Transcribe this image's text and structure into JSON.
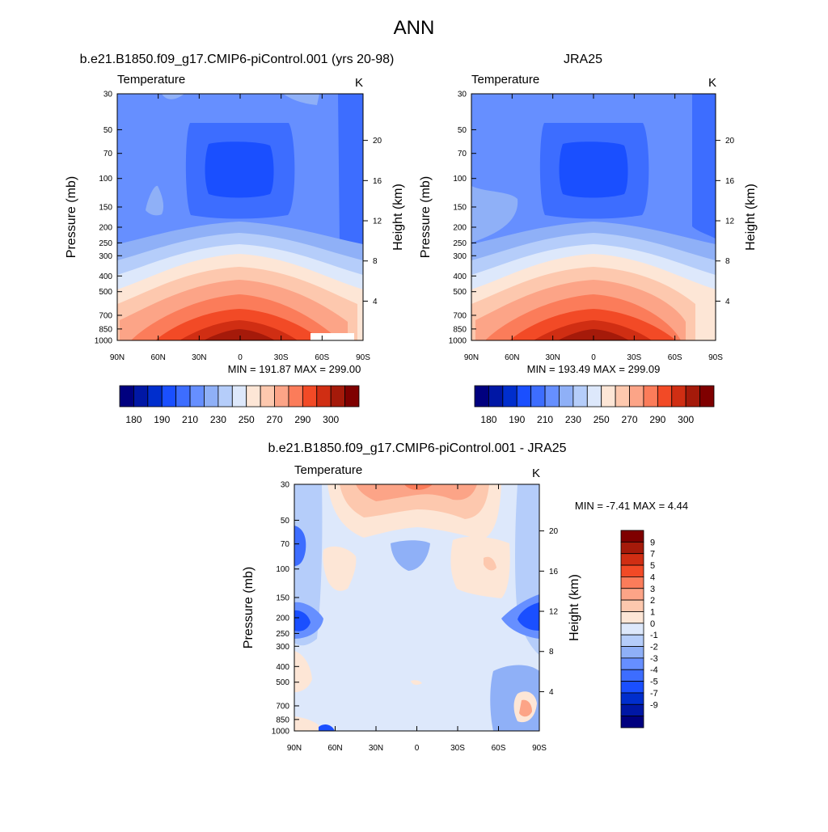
{
  "page_title": "ANN",
  "chart_data": [
    {
      "type": "heatmap",
      "id": "model",
      "title": "b.e21.B1850.f09_g17.CMIP6-piControl.001 (yrs 20-98)",
      "left_label": "Temperature",
      "units": "K",
      "ylabel": "Pressure (mb)",
      "ylabel_right": "Height (km)",
      "x_ticks": [
        "90N",
        "60N",
        "30N",
        "0",
        "30S",
        "60S",
        "90S"
      ],
      "y_ticks": [
        "30",
        "50",
        "70",
        "100",
        "150",
        "200",
        "250",
        "300",
        "400",
        "500",
        "700",
        "850",
        "1000"
      ],
      "y_right_ticks": [
        "20",
        "16",
        "12",
        "8",
        "4"
      ],
      "min_max_text": "MIN = 191.87  MAX = 299.00",
      "levels": [
        180,
        185,
        190,
        200,
        210,
        220,
        230,
        240,
        250,
        260,
        270,
        280,
        290,
        295,
        300
      ],
      "colorbar_labels": [
        "180",
        "190",
        "210",
        "230",
        "250",
        "270",
        "290",
        "300"
      ],
      "colors": [
        "#00007f",
        "#0017a5",
        "#002ecd",
        "#1a4fff",
        "#3d6dff",
        "#668fff",
        "#8fb0f7",
        "#b5cdfa",
        "#dde8fb",
        "#fde6d6",
        "#fdc8ae",
        "#fca487",
        "#fb7c5a",
        "#f24a26",
        "#d02e13",
        "#a51a0a",
        "#7f0000"
      ]
    },
    {
      "type": "heatmap",
      "id": "obs",
      "title": "JRA25",
      "left_label": "Temperature",
      "units": "K",
      "ylabel": "Pressure (mb)",
      "ylabel_right": "Height (km)",
      "x_ticks": [
        "90N",
        "60N",
        "30N",
        "0",
        "30S",
        "60S",
        "90S"
      ],
      "y_ticks": [
        "30",
        "50",
        "70",
        "100",
        "150",
        "200",
        "250",
        "300",
        "400",
        "500",
        "700",
        "850",
        "1000"
      ],
      "y_right_ticks": [
        "20",
        "16",
        "12",
        "8",
        "4"
      ],
      "min_max_text": "MIN = 193.49  MAX = 299.09",
      "levels": [
        180,
        185,
        190,
        200,
        210,
        220,
        230,
        240,
        250,
        260,
        270,
        280,
        290,
        295,
        300
      ],
      "colorbar_labels": [
        "180",
        "190",
        "210",
        "230",
        "250",
        "270",
        "290",
        "300"
      ],
      "colors": [
        "#00007f",
        "#0017a5",
        "#002ecd",
        "#1a4fff",
        "#3d6dff",
        "#668fff",
        "#8fb0f7",
        "#b5cdfa",
        "#dde8fb",
        "#fde6d6",
        "#fdc8ae",
        "#fca487",
        "#fb7c5a",
        "#f24a26",
        "#d02e13",
        "#a51a0a",
        "#7f0000"
      ]
    },
    {
      "type": "heatmap",
      "id": "diff",
      "title": "b.e21.B1850.f09_g17.CMIP6-piControl.001 - JRA25",
      "left_label": "Temperature",
      "units": "K",
      "ylabel": "Pressure (mb)",
      "ylabel_right": "Height (km)",
      "x_ticks": [
        "90N",
        "60N",
        "30N",
        "0",
        "30S",
        "60S",
        "90S"
      ],
      "y_ticks": [
        "30",
        "50",
        "70",
        "100",
        "150",
        "200",
        "250",
        "300",
        "400",
        "500",
        "700",
        "850",
        "1000"
      ],
      "y_right_ticks": [
        "20",
        "16",
        "12",
        "8",
        "4"
      ],
      "min_max_text": "MIN =  -7.41  MAX =   4.44",
      "levels": [
        -9,
        -7,
        -5,
        -4,
        -3,
        -2,
        -1,
        0,
        1,
        2,
        3,
        4,
        5,
        7,
        9
      ],
      "colorbar_labels": [
        "9",
        "7",
        "5",
        "4",
        "3",
        "2",
        "1",
        "0",
        "-1",
        "-2",
        "-3",
        "-4",
        "-5",
        "-7",
        "-9"
      ],
      "colors": [
        "#00007f",
        "#0017a5",
        "#002ecd",
        "#1a4fff",
        "#3d6dff",
        "#668fff",
        "#8fb0f7",
        "#b5cdfa",
        "#dde8fb",
        "#fde6d6",
        "#fdc8ae",
        "#fca487",
        "#fb7c5a",
        "#f24a26",
        "#d02e13",
        "#a51a0a",
        "#7f0000"
      ]
    }
  ]
}
